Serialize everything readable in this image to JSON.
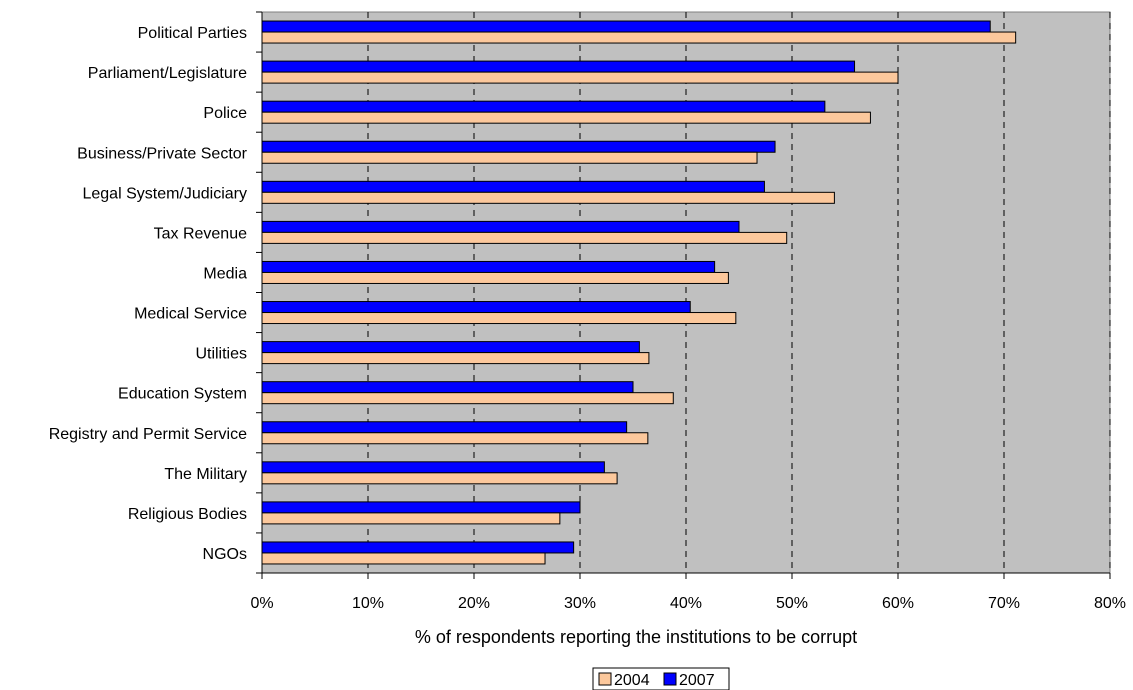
{
  "chart_data": {
    "type": "bar",
    "orientation": "horizontal",
    "categories": [
      "Political Parties",
      "Parliament/Legislature",
      "Police",
      "Business/Private Sector",
      "Legal System/Judiciary",
      "Tax Revenue",
      "Media",
      "Medical Service",
      "Utilities",
      "Education System",
      "Registry and Permit Service",
      "The Military",
      "Religious Bodies",
      "NGOs"
    ],
    "series": [
      {
        "name": "2007",
        "color": "#0000ff",
        "values": [
          68.7,
          55.9,
          53.1,
          48.4,
          47.4,
          45.0,
          42.7,
          40.4,
          35.6,
          35.0,
          34.4,
          32.3,
          30.0,
          29.4
        ]
      },
      {
        "name": "2004",
        "color": "#fcc89c",
        "values": [
          71.1,
          60.0,
          57.4,
          46.7,
          54.0,
          49.5,
          44.0,
          44.7,
          36.5,
          38.8,
          36.4,
          33.5,
          28.1,
          26.7
        ]
      }
    ],
    "xlabel": "% of respondents reporting the institutions to be corrupt",
    "xlim": [
      0,
      80
    ],
    "xticks": [
      "0%",
      "10%",
      "20%",
      "30%",
      "40%",
      "50%",
      "60%",
      "70%",
      "80%"
    ],
    "grid": "vertical-dashed",
    "plot_background": "#c0c0c0",
    "legend": {
      "position": "bottom-center",
      "entries": [
        "2004",
        "2007"
      ]
    }
  }
}
